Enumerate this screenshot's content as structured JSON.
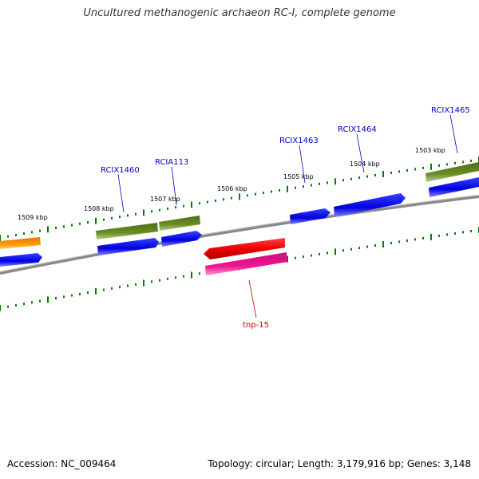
{
  "title": "Uncultured methanogenic archaeon RC-I, complete genome",
  "footer": {
    "accession": "Accession: NC_009464",
    "topology": "Topology: circular; Length: 3,179,916 bp; Genes: 3,148"
  },
  "scale_labels": [
    "1509 kbp",
    "1508 kbp",
    "1507 kbp",
    "1506 kbp",
    "1505 kbp",
    "1504 kbp",
    "1503 kbp"
  ],
  "gene_labels": [
    {
      "name": "RCIX1460",
      "color": "#0000cc"
    },
    {
      "name": "RCIA113",
      "color": "#0000cc"
    },
    {
      "name": "RCIX1463",
      "color": "#0000cc"
    },
    {
      "name": "RCIX1464",
      "color": "#0000cc"
    },
    {
      "name": "RCIX1465",
      "color": "#0000cc"
    },
    {
      "name": "tnp-15",
      "color": "#cc0000"
    }
  ],
  "colors": {
    "backbone": "#888888",
    "cds_blue": "#0000ee",
    "olive": "#6b8e23",
    "orange": "#ff9900",
    "red": "#ee0000",
    "pink": "#ee1493",
    "ticks": "#008000"
  }
}
